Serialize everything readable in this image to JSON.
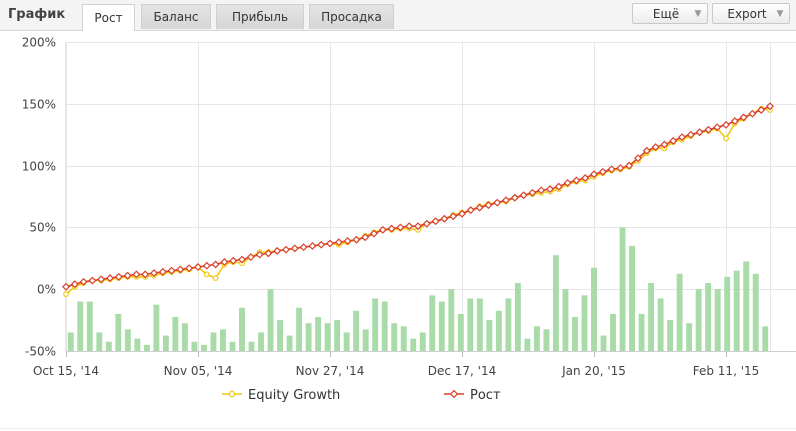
{
  "header": {
    "title": "График",
    "tabs": [
      {
        "label": "Рост",
        "active": true
      },
      {
        "label": "Баланс",
        "active": false
      },
      {
        "label": "Прибыль",
        "active": false
      },
      {
        "label": "Просадка",
        "active": false
      }
    ],
    "more_label": "Ещё",
    "export_label": "Export"
  },
  "colors": {
    "equity": "#f2c811",
    "growth": "#d9412d",
    "volume": "#a8dba8",
    "grid": "#e6e6e6"
  },
  "chart_data": {
    "type": "line",
    "y_axis": {
      "min": -50,
      "max": 200,
      "ticks": [
        -50,
        0,
        50,
        100,
        150,
        200
      ],
      "tick_labels": [
        "-50%",
        "0%",
        "50%",
        "100%",
        "150%",
        "200%"
      ]
    },
    "x_ticks": [
      {
        "index": 0,
        "label": "Oct 15, '14"
      },
      {
        "index": 15,
        "label": "Nov 05, '14"
      },
      {
        "index": 30,
        "label": "Nov 27, '14"
      },
      {
        "index": 45,
        "label": "Dec 17, '14"
      },
      {
        "index": 60,
        "label": "Jan 20, '15"
      },
      {
        "index": 75,
        "label": "Feb 11, '15"
      }
    ],
    "series": [
      {
        "name": "Equity Growth",
        "values": [
          -4,
          2,
          5,
          7,
          7,
          8,
          9,
          10,
          10,
          10,
          11,
          13,
          14,
          15,
          16,
          18,
          12,
          9,
          20,
          22,
          21,
          26,
          30,
          30,
          31,
          32,
          33,
          34,
          35,
          36,
          37,
          36,
          38,
          40,
          43,
          46,
          48,
          48,
          49,
          49,
          48,
          53,
          55,
          57,
          60,
          62,
          64,
          67,
          69,
          70,
          71,
          74,
          76,
          77,
          78,
          79,
          81,
          85,
          87,
          88,
          91,
          94,
          96,
          97,
          99,
          104,
          110,
          114,
          114,
          119,
          121,
          124,
          127,
          128,
          130,
          122,
          134,
          138,
          142,
          146,
          145
        ]
      },
      {
        "name": "Рост",
        "values": [
          2,
          4,
          6,
          7,
          8,
          9,
          10,
          11,
          12,
          12,
          13,
          14,
          15,
          16,
          17,
          18,
          19,
          20,
          22,
          23,
          24,
          26,
          28,
          29,
          31,
          32,
          33,
          34,
          35,
          36,
          37,
          38,
          39,
          40,
          42,
          45,
          48,
          49,
          50,
          51,
          51,
          53,
          55,
          57,
          59,
          61,
          64,
          66,
          68,
          70,
          72,
          74,
          76,
          78,
          80,
          81,
          83,
          86,
          88,
          90,
          93,
          95,
          97,
          98,
          100,
          106,
          112,
          115,
          117,
          120,
          123,
          125,
          127,
          129,
          131,
          133,
          136,
          139,
          142,
          145,
          148
        ]
      }
    ],
    "volume": [
      6,
      16,
      16,
      6,
      3,
      12,
      7,
      4,
      2,
      15,
      5,
      11,
      9,
      3,
      2,
      6,
      7,
      3,
      14,
      3,
      6,
      20,
      10,
      5,
      14,
      9,
      11,
      9,
      10,
      6,
      13,
      7,
      17,
      16,
      9,
      8,
      4,
      6,
      18,
      16,
      20,
      12,
      17,
      17,
      10,
      13,
      17,
      22,
      4,
      8,
      7,
      31,
      20,
      11,
      18,
      27,
      5,
      12,
      40,
      34,
      12,
      22,
      17,
      10,
      25,
      9,
      20,
      22,
      20,
      24,
      26,
      29,
      25,
      8
    ]
  },
  "legend": [
    {
      "name": "Equity Growth"
    },
    {
      "name": "Рост"
    }
  ]
}
